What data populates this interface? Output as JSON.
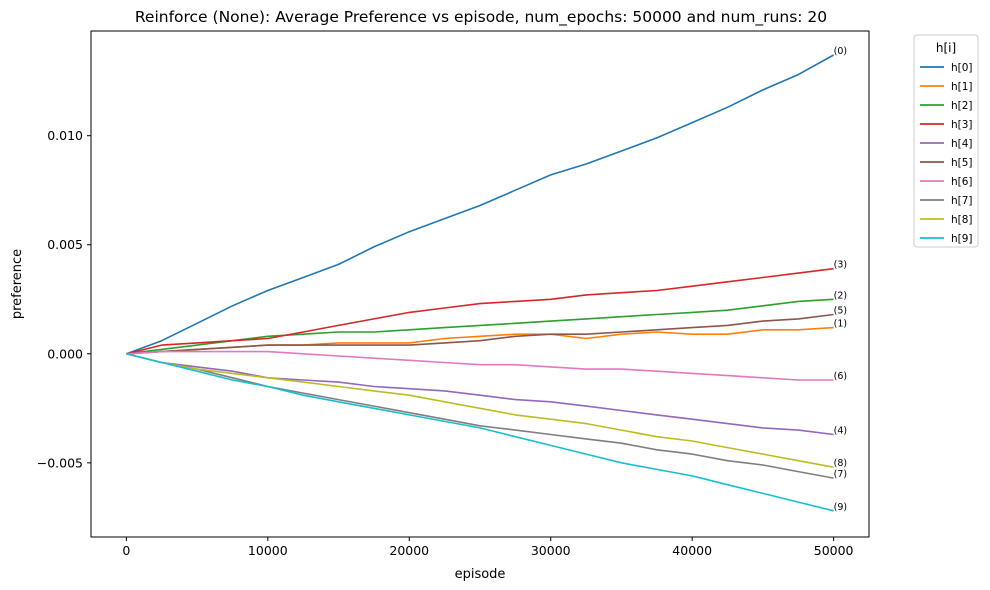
{
  "chart_data": {
    "type": "line",
    "title": "Reinforce (None): Average Preference vs episode, num_epochs: 50000 and num_runs: 20",
    "xlabel": "episode",
    "ylabel": "preference",
    "xlim": [
      -2500,
      52500
    ],
    "ylim": [
      -0.0084,
      0.0148
    ],
    "xticks": [
      0,
      10000,
      20000,
      30000,
      40000,
      50000
    ],
    "xtick_labels": [
      "0",
      "10000",
      "20000",
      "30000",
      "40000",
      "50000"
    ],
    "yticks": [
      -0.005,
      0.0,
      0.005,
      0.01
    ],
    "ytick_labels": [
      "−0.005",
      "0.000",
      "0.005",
      "0.010"
    ],
    "grid": false,
    "legend": {
      "title": "h[i]",
      "placement": "outside-right-top"
    },
    "x": [
      0,
      2500,
      5000,
      7500,
      10000,
      12500,
      15000,
      17500,
      20000,
      22500,
      25000,
      27500,
      30000,
      32500,
      35000,
      37500,
      40000,
      42500,
      45000,
      47500,
      50000
    ],
    "series": [
      {
        "name": "h[0]",
        "end_label": "(0)",
        "color": "#1f77b4",
        "values": [
          0,
          0.0006,
          0.0014,
          0.0022,
          0.0029,
          0.0035,
          0.0041,
          0.0049,
          0.0056,
          0.0062,
          0.0068,
          0.0075,
          0.0082,
          0.0087,
          0.0093,
          0.0099,
          0.0106,
          0.0113,
          0.0121,
          0.0128,
          0.0137
        ]
      },
      {
        "name": "h[1]",
        "end_label": "(1)",
        "color": "#ff7f0e",
        "values": [
          0,
          0.0001,
          0.0002,
          0.0003,
          0.0004,
          0.0004,
          0.0005,
          0.0005,
          0.0005,
          0.0007,
          0.0008,
          0.0009,
          0.0009,
          0.0007,
          0.0009,
          0.001,
          0.0009,
          0.0009,
          0.0011,
          0.0011,
          0.0012
        ]
      },
      {
        "name": "h[2]",
        "end_label": "(2)",
        "color": "#2ca02c",
        "values": [
          0,
          0.0002,
          0.0004,
          0.0006,
          0.0008,
          0.0009,
          0.001,
          0.001,
          0.0011,
          0.0012,
          0.0013,
          0.0014,
          0.0015,
          0.0016,
          0.0017,
          0.0018,
          0.0019,
          0.002,
          0.0022,
          0.0024,
          0.0025
        ]
      },
      {
        "name": "h[3]",
        "end_label": "(3)",
        "color": "#d62728",
        "values": [
          0,
          0.0004,
          0.0005,
          0.0006,
          0.0007,
          0.001,
          0.0013,
          0.0016,
          0.0019,
          0.0021,
          0.0023,
          0.0024,
          0.0025,
          0.0027,
          0.0028,
          0.0029,
          0.0031,
          0.0033,
          0.0035,
          0.0037,
          0.0039
        ]
      },
      {
        "name": "h[4]",
        "end_label": "(4)",
        "color": "#9467bd",
        "values": [
          0,
          -0.0004,
          -0.0006,
          -0.0008,
          -0.0011,
          -0.0012,
          -0.0013,
          -0.0015,
          -0.0016,
          -0.0017,
          -0.0019,
          -0.0021,
          -0.0022,
          -0.0024,
          -0.0026,
          -0.0028,
          -0.003,
          -0.0032,
          -0.0034,
          -0.0035,
          -0.0037
        ]
      },
      {
        "name": "h[5]",
        "end_label": "(5)",
        "color": "#8c564b",
        "values": [
          0,
          0.0001,
          0.0002,
          0.0003,
          0.0004,
          0.0004,
          0.0004,
          0.0004,
          0.0004,
          0.0005,
          0.0006,
          0.0008,
          0.0009,
          0.0009,
          0.001,
          0.0011,
          0.0012,
          0.0013,
          0.0015,
          0.0016,
          0.0018
        ]
      },
      {
        "name": "h[6]",
        "end_label": "(6)",
        "color": "#e377c2",
        "values": [
          0,
          0.0001,
          0.0001,
          0.0001,
          0.0001,
          0.0,
          -0.0001,
          -0.0002,
          -0.0003,
          -0.0004,
          -0.0005,
          -0.0005,
          -0.0006,
          -0.0007,
          -0.0007,
          -0.0008,
          -0.0009,
          -0.001,
          -0.0011,
          -0.0012,
          -0.0012
        ]
      },
      {
        "name": "h[7]",
        "end_label": "(7)",
        "color": "#7f7f7f",
        "values": [
          0,
          -0.0004,
          -0.0007,
          -0.0011,
          -0.0015,
          -0.0018,
          -0.0021,
          -0.0024,
          -0.0027,
          -0.003,
          -0.0033,
          -0.0035,
          -0.0037,
          -0.0039,
          -0.0041,
          -0.0044,
          -0.0046,
          -0.0049,
          -0.0051,
          -0.0054,
          -0.0057
        ]
      },
      {
        "name": "h[8]",
        "end_label": "(8)",
        "color": "#bcbd22",
        "values": [
          0,
          -0.0004,
          -0.0007,
          -0.0009,
          -0.0011,
          -0.0013,
          -0.0015,
          -0.0017,
          -0.0019,
          -0.0022,
          -0.0025,
          -0.0028,
          -0.003,
          -0.0032,
          -0.0035,
          -0.0038,
          -0.004,
          -0.0043,
          -0.0046,
          -0.0049,
          -0.0052
        ]
      },
      {
        "name": "h[9]",
        "end_label": "(9)",
        "color": "#17becf",
        "values": [
          0,
          -0.0004,
          -0.0008,
          -0.0012,
          -0.0015,
          -0.0019,
          -0.0022,
          -0.0025,
          -0.0028,
          -0.0031,
          -0.0034,
          -0.0038,
          -0.0042,
          -0.0046,
          -0.005,
          -0.0053,
          -0.0056,
          -0.006,
          -0.0064,
          -0.0068,
          -0.0072
        ]
      }
    ]
  }
}
